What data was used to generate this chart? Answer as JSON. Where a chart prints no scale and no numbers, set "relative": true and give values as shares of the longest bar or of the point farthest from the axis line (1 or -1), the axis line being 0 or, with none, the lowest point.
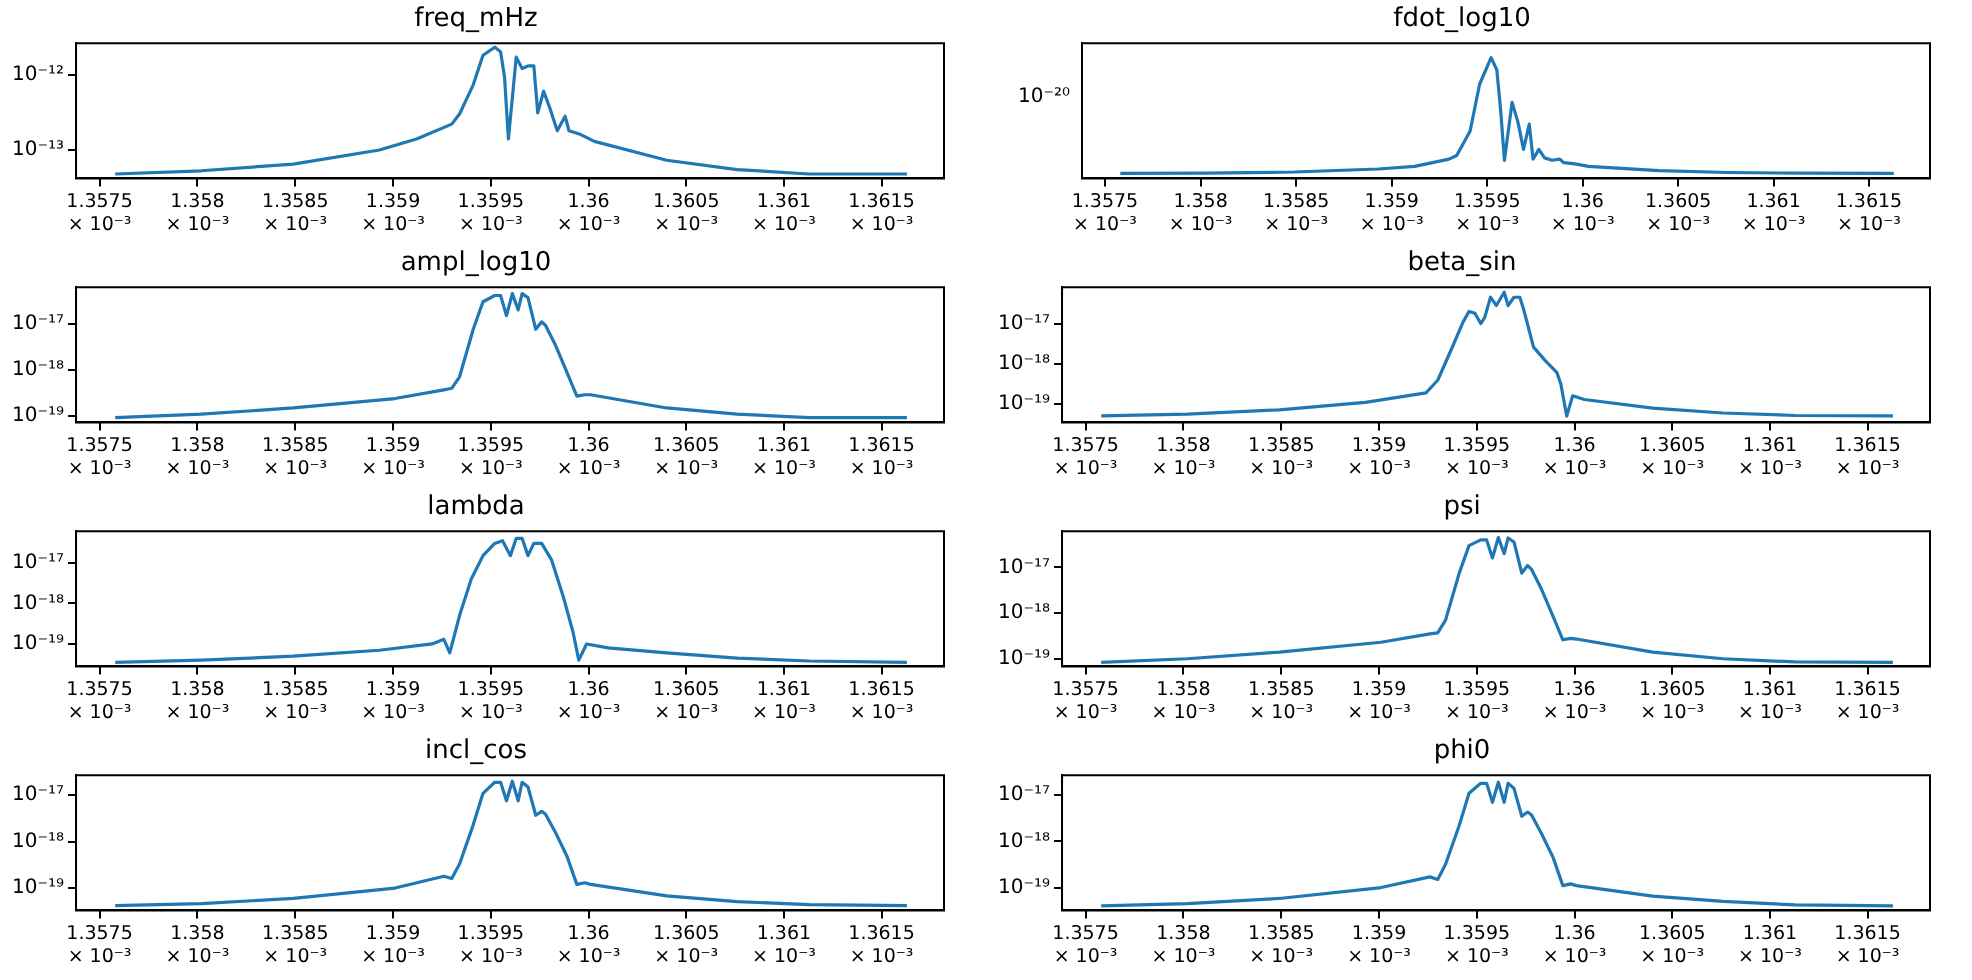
{
  "chart_data": [
    {
      "type": "line",
      "title": "freq_mHz",
      "color": "#1f77b4",
      "log": "xy",
      "grid": false,
      "legend": false,
      "x": [
        0.00135758,
        0.00135802,
        0.00135849,
        0.00135893,
        0.00135912,
        0.0013593,
        0.00135934,
        0.00135941,
        0.00135946,
        0.00135952,
        0.00135955,
        0.00135957,
        0.00135959,
        0.00135963,
        0.00135966,
        0.00135969,
        0.00135972,
        0.00135974,
        0.00135977,
        0.0013598,
        0.00135984,
        0.00135988,
        0.0013599,
        0.00135996,
        0.00136003,
        0.0013604,
        0.00136076,
        0.00136113,
        0.00136163
      ],
      "values": [
        4.8e-14,
        5.3e-14,
        6.5e-14,
        1e-13,
        1.4e-13,
        2.2e-13,
        3e-13,
        7.3e-13,
        1.8e-12,
        2.3e-12,
        2e-12,
        9.3e-13,
        1.4e-13,
        1.7e-12,
        1.2e-12,
        1.3e-12,
        1.3e-12,
        3.1e-13,
        6e-13,
        3.7e-13,
        1.8e-13,
        2.8e-13,
        1.8e-13,
        1.6e-13,
        1.3e-13,
        7.3e-14,
        5.5e-14,
        4.8e-14,
        4.8e-14
      ],
      "xlim": [
        0.00135738,
        0.00136182
      ],
      "ylim": [
        4.2e-14,
        2.6e-12
      ],
      "yticks": [
        {
          "value": 1e-13,
          "label": "10⁻¹³"
        },
        {
          "value": 1e-12,
          "label": "10⁻¹²"
        }
      ],
      "xticks": [
        {
          "value": 0.0013575,
          "label": "1.3575 × 10⁻³"
        },
        {
          "value": 0.001358,
          "label": "1.358 × 10⁻³"
        },
        {
          "value": 0.0013585,
          "label": "1.3585 × 10⁻³"
        },
        {
          "value": 0.001359,
          "label": "1.359 × 10⁻³"
        },
        {
          "value": 0.0013595,
          "label": "1.3595 × 10⁻³"
        },
        {
          "value": 0.00136,
          "label": "1.36 × 10⁻³"
        },
        {
          "value": 0.0013605,
          "label": "1.3605 × 10⁻³"
        },
        {
          "value": 0.001361,
          "label": "1.361 × 10⁻³"
        },
        {
          "value": 0.0013615,
          "label": "1.3615 × 10⁻³"
        }
      ]
    },
    {
      "type": "line",
      "title": "fdot_log10",
      "color": "#1f77b4",
      "log": "x",
      "grid": false,
      "legend": false,
      "x": [
        0.00135758,
        0.00135802,
        0.00135849,
        0.00135893,
        0.00135912,
        0.0013593,
        0.00135934,
        0.00135941,
        0.00135946,
        0.00135952,
        0.00135955,
        0.00135957,
        0.00135959,
        0.00135963,
        0.00135966,
        0.00135969,
        0.00135972,
        0.00135974,
        0.00135977,
        0.0013598,
        0.00135984,
        0.00135988,
        0.0013599,
        0.00135996,
        0.00136003,
        0.0013604,
        0.00136076,
        0.00136113,
        0.00136163
      ],
      "values": [
        0.041,
        0.043,
        0.053,
        0.078,
        0.1,
        0.16,
        0.19,
        0.39,
        0.78,
        1,
        0.9,
        0.57,
        0.15,
        0.63,
        0.47,
        0.24,
        0.45,
        0.16,
        0.24,
        0.17,
        0.15,
        0.16,
        0.13,
        0.12,
        0.1,
        0.065,
        0.049,
        0.043,
        0.041
      ],
      "relative": true,
      "annotations": [
        "10⁻²⁰"
      ],
      "xlim": [
        0.00135738,
        0.00136182
      ],
      "xticks": [
        {
          "value": 0.0013575,
          "label": "1.3575 × 10⁻³"
        },
        {
          "value": 0.001358,
          "label": "1.358 × 10⁻³"
        },
        {
          "value": 0.0013585,
          "label": "1.3585 × 10⁻³"
        },
        {
          "value": 0.001359,
          "label": "1.359 × 10⁻³"
        },
        {
          "value": 0.0013595,
          "label": "1.3595 × 10⁻³"
        },
        {
          "value": 0.00136,
          "label": "1.36 × 10⁻³"
        },
        {
          "value": 0.0013605,
          "label": "1.3605 × 10⁻³"
        },
        {
          "value": 0.001361,
          "label": "1.361 × 10⁻³"
        },
        {
          "value": 0.0013615,
          "label": "1.3615 × 10⁻³"
        }
      ]
    },
    {
      "type": "line",
      "title": "ampl_log10",
      "color": "#1f77b4",
      "log": "xy",
      "grid": false,
      "legend": false,
      "x": [
        0.00135758,
        0.00135802,
        0.00135849,
        0.00135901,
        0.00135926,
        0.0013593,
        0.00135934,
        0.00135941,
        0.00135946,
        0.00135952,
        0.00135955,
        0.00135958,
        0.00135961,
        0.00135964,
        0.00135966,
        0.00135969,
        0.00135973,
        0.00135976,
        0.00135978,
        0.00135983,
        0.00135989,
        0.00135994,
        0.00135998,
        0.00136001,
        0.0013604,
        0.00136076,
        0.00136113,
        0.00136163
      ],
      "values": [
        9.3e-20,
        1.1e-19,
        1.5e-19,
        2.4e-19,
        3.7e-19,
        4e-19,
        7.1e-19,
        7.6e-18,
        3e-17,
        4.1e-17,
        4.1e-17,
        1.5e-17,
        4.5e-17,
        2e-17,
        4.5e-17,
        3.7e-17,
        7.6e-18,
        1.1e-17,
        9.2e-18,
        3.5e-18,
        8.7e-19,
        2.7e-19,
        2.9e-19,
        2.9e-19,
        1.5e-19,
        1.1e-19,
        9.3e-20,
        9.3e-20
      ],
      "xlim": [
        0.00135738,
        0.00136182
      ],
      "ylim": [
        7.3e-20,
        6.2e-17
      ],
      "yticks": [
        {
          "value": 1e-19,
          "label": "10⁻¹⁹"
        },
        {
          "value": 1e-18,
          "label": "10⁻¹⁸"
        },
        {
          "value": 1e-17,
          "label": "10⁻¹⁷"
        }
      ],
      "xticks": [
        {
          "value": 0.0013575,
          "label": "1.3575 × 10⁻³"
        },
        {
          "value": 0.001358,
          "label": "1.358 × 10⁻³"
        },
        {
          "value": 0.0013585,
          "label": "1.3585 × 10⁻³"
        },
        {
          "value": 0.001359,
          "label": "1.359 × 10⁻³"
        },
        {
          "value": 0.0013595,
          "label": "1.3595 × 10⁻³"
        },
        {
          "value": 0.00136,
          "label": "1.36 × 10⁻³"
        },
        {
          "value": 0.0013605,
          "label": "1.3605 × 10⁻³"
        },
        {
          "value": 0.001361,
          "label": "1.361 × 10⁻³"
        },
        {
          "value": 0.0013615,
          "label": "1.3615 × 10⁻³"
        }
      ]
    },
    {
      "type": "line",
      "title": "beta_sin",
      "color": "#1f77b4",
      "log": "xy",
      "grid": false,
      "legend": false,
      "x": [
        0.00135758,
        0.00135802,
        0.00135849,
        0.00135893,
        0.00135924,
        0.0013593,
        0.00135937,
        0.00135943,
        0.00135946,
        0.00135949,
        0.00135952,
        0.00135954,
        0.00135957,
        0.0013596,
        0.00135964,
        0.00135966,
        0.00135969,
        0.00135972,
        0.00135974,
        0.00135979,
        0.00135985,
        0.00135991,
        0.00135993,
        0.00135996,
        0.00135999,
        0.00136005,
        0.0013604,
        0.00136076,
        0.00136113,
        0.00136163
      ],
      "values": [
        5.1e-20,
        5.6e-20,
        7.2e-20,
        1.1e-19,
        1.9e-19,
        3.9e-19,
        2.3e-18,
        1.1e-17,
        2e-17,
        1.8e-17,
        1e-17,
        1.4e-17,
        4.5e-17,
        2.8e-17,
        6e-17,
        2.8e-17,
        4.5e-17,
        4.5e-17,
        2.2e-17,
        2.6e-18,
        1.2e-18,
        6e-19,
        3.1e-19,
        5e-20,
        1.6e-19,
        1.3e-19,
        7.9e-20,
        6e-20,
        5.2e-20,
        5.1e-20
      ],
      "xlim": [
        0.00135738,
        0.00136182
      ],
      "ylim": [
        3.5e-20,
        8e-17
      ],
      "yticks": [
        {
          "value": 1e-19,
          "label": "10⁻¹⁹"
        },
        {
          "value": 1e-18,
          "label": "10⁻¹⁸"
        },
        {
          "value": 1e-17,
          "label": "10⁻¹⁷"
        }
      ],
      "xticks": [
        {
          "value": 0.0013575,
          "label": "1.3575 × 10⁻³"
        },
        {
          "value": 0.001358,
          "label": "1.358 × 10⁻³"
        },
        {
          "value": 0.0013585,
          "label": "1.3585 × 10⁻³"
        },
        {
          "value": 0.001359,
          "label": "1.359 × 10⁻³"
        },
        {
          "value": 0.0013595,
          "label": "1.3595 × 10⁻³"
        },
        {
          "value": 0.00136,
          "label": "1.36 × 10⁻³"
        },
        {
          "value": 0.0013605,
          "label": "1.3605 × 10⁻³"
        },
        {
          "value": 0.001361,
          "label": "1.361 × 10⁻³"
        },
        {
          "value": 0.0013615,
          "label": "1.3615 × 10⁻³"
        }
      ]
    },
    {
      "type": "line",
      "title": "lambda",
      "color": "#1f77b4",
      "log": "xy",
      "grid": false,
      "legend": false,
      "x": [
        0.00135758,
        0.00135802,
        0.00135849,
        0.00135893,
        0.0013592,
        0.00135926,
        0.00135929,
        0.00135934,
        0.0013594,
        0.00135946,
        0.00135952,
        0.00135956,
        0.0013596,
        0.00135963,
        0.00135966,
        0.00135969,
        0.00135972,
        0.00135976,
        0.00135981,
        0.00135987,
        0.00135992,
        0.00135995,
        0.00135999,
        0.0013601,
        0.0013604,
        0.00136076,
        0.00136113,
        0.00136163
      ],
      "values": [
        3.5e-20,
        4e-20,
        5e-20,
        7e-20,
        1e-19,
        1.3e-19,
        6e-20,
        5e-19,
        4e-18,
        1.5e-17,
        3e-17,
        3.5e-17,
        1.5e-17,
        4e-17,
        4e-17,
        1.5e-17,
        3e-17,
        3e-17,
        1.2e-17,
        1.5e-18,
        2e-19,
        4e-20,
        1e-19,
        8e-20,
        6e-20,
        4.5e-20,
        3.8e-20,
        3.5e-20
      ],
      "xlim": [
        0.00135738,
        0.00136182
      ],
      "ylim": [
        2.8e-20,
        6e-17
      ],
      "yticks": [
        {
          "value": 1e-19,
          "label": "10⁻¹⁹"
        },
        {
          "value": 1e-18,
          "label": "10⁻¹⁸"
        },
        {
          "value": 1e-17,
          "label": "10⁻¹⁷"
        }
      ],
      "xticks": [
        {
          "value": 0.0013575,
          "label": "1.3575 × 10⁻³"
        },
        {
          "value": 0.001358,
          "label": "1.358 × 10⁻³"
        },
        {
          "value": 0.0013585,
          "label": "1.3585 × 10⁻³"
        },
        {
          "value": 0.001359,
          "label": "1.359 × 10⁻³"
        },
        {
          "value": 0.0013595,
          "label": "1.3595 × 10⁻³"
        },
        {
          "value": 0.00136,
          "label": "1.36 × 10⁻³"
        },
        {
          "value": 0.0013605,
          "label": "1.3605 × 10⁻³"
        },
        {
          "value": 0.001361,
          "label": "1.361 × 10⁻³"
        },
        {
          "value": 0.0013615,
          "label": "1.3615 × 10⁻³"
        }
      ]
    },
    {
      "type": "line",
      "title": "psi",
      "color": "#1f77b4",
      "log": "xy",
      "grid": false,
      "legend": false,
      "x": [
        0.00135758,
        0.00135802,
        0.00135849,
        0.00135901,
        0.00135926,
        0.0013593,
        0.00135934,
        0.00135941,
        0.00135946,
        0.00135952,
        0.00135955,
        0.00135958,
        0.00135961,
        0.00135964,
        0.00135966,
        0.00135969,
        0.00135973,
        0.00135976,
        0.00135978,
        0.00135983,
        0.00135989,
        0.00135994,
        0.00135998,
        0.00136001,
        0.0013604,
        0.00136076,
        0.00136113,
        0.00136163
      ],
      "values": [
        8.3e-20,
        1e-19,
        1.4e-19,
        2.3e-19,
        3.5e-19,
        3.7e-19,
        7e-19,
        7.5e-18,
        3e-17,
        4e-17,
        4e-17,
        1.6e-17,
        4.5e-17,
        2e-17,
        4.4e-17,
        3.6e-17,
        7.5e-18,
        1.1e-17,
        9e-18,
        3.4e-18,
        8.5e-19,
        2.6e-19,
        2.8e-19,
        2.7e-19,
        1.4e-19,
        1e-19,
        8.5e-20,
        8.3e-20
      ],
      "xlim": [
        0.00135738,
        0.00136182
      ],
      "ylim": [
        6.8e-20,
        6.2e-17
      ],
      "yticks": [
        {
          "value": 1e-19,
          "label": "10⁻¹⁹"
        },
        {
          "value": 1e-18,
          "label": "10⁻¹⁸"
        },
        {
          "value": 1e-17,
          "label": "10⁻¹⁷"
        }
      ],
      "xticks": [
        {
          "value": 0.0013575,
          "label": "1.3575 × 10⁻³"
        },
        {
          "value": 0.001358,
          "label": "1.358 × 10⁻³"
        },
        {
          "value": 0.0013585,
          "label": "1.3585 × 10⁻³"
        },
        {
          "value": 0.001359,
          "label": "1.359 × 10⁻³"
        },
        {
          "value": 0.0013595,
          "label": "1.3595 × 10⁻³"
        },
        {
          "value": 0.00136,
          "label": "1.36 × 10⁻³"
        },
        {
          "value": 0.0013605,
          "label": "1.3605 × 10⁻³"
        },
        {
          "value": 0.001361,
          "label": "1.361 × 10⁻³"
        },
        {
          "value": 0.0013615,
          "label": "1.3615 × 10⁻³"
        }
      ]
    },
    {
      "type": "line",
      "title": "incl_cos",
      "color": "#1f77b4",
      "log": "xy",
      "grid": false,
      "legend": false,
      "x": [
        0.00135758,
        0.00135802,
        0.00135849,
        0.00135901,
        0.00135926,
        0.0013593,
        0.00135934,
        0.00135941,
        0.00135946,
        0.00135952,
        0.00135955,
        0.00135958,
        0.00135961,
        0.00135964,
        0.00135966,
        0.00135969,
        0.00135973,
        0.00135976,
        0.00135978,
        0.00135983,
        0.00135989,
        0.00135994,
        0.00135998,
        0.00136001,
        0.0013604,
        0.00136076,
        0.00136113,
        0.00136163
      ],
      "values": [
        4.2e-20,
        4.6e-20,
        6e-20,
        1e-19,
        1.8e-19,
        1.6e-19,
        3.3e-19,
        2.3e-18,
        1.1e-17,
        1.9e-17,
        1.9e-17,
        7.6e-18,
        2e-17,
        7.6e-18,
        1.9e-17,
        1.5e-17,
        3.7e-18,
        4.5e-18,
        3.9e-18,
        1.6e-18,
        4.8e-19,
        1.2e-19,
        1.3e-19,
        1.2e-19,
        6.8e-20,
        5.1e-20,
        4.4e-20,
        4.2e-20
      ],
      "xlim": [
        0.00135738,
        0.00136182
      ],
      "ylim": [
        3.3e-20,
        2.7e-17
      ],
      "yticks": [
        {
          "value": 1e-19,
          "label": "10⁻¹⁹"
        },
        {
          "value": 1e-18,
          "label": "10⁻¹⁸"
        },
        {
          "value": 1e-17,
          "label": "10⁻¹⁷"
        }
      ],
      "xticks": [
        {
          "value": 0.0013575,
          "label": "1.3575 × 10⁻³"
        },
        {
          "value": 0.001358,
          "label": "1.358 × 10⁻³"
        },
        {
          "value": 0.0013585,
          "label": "1.3585 × 10⁻³"
        },
        {
          "value": 0.001359,
          "label": "1.359 × 10⁻³"
        },
        {
          "value": 0.0013595,
          "label": "1.3595 × 10⁻³"
        },
        {
          "value": 0.00136,
          "label": "1.36 × 10⁻³"
        },
        {
          "value": 0.0013605,
          "label": "1.3605 × 10⁻³"
        },
        {
          "value": 0.001361,
          "label": "1.361 × 10⁻³"
        },
        {
          "value": 0.0013615,
          "label": "1.3615 × 10⁻³"
        }
      ]
    },
    {
      "type": "line",
      "title": "phi0",
      "color": "#1f77b4",
      "log": "xy",
      "grid": false,
      "legend": false,
      "x": [
        0.00135758,
        0.00135802,
        0.00135849,
        0.00135901,
        0.00135926,
        0.0013593,
        0.00135934,
        0.00135941,
        0.00135946,
        0.00135952,
        0.00135955,
        0.00135958,
        0.00135961,
        0.00135964,
        0.00135966,
        0.00135969,
        0.00135973,
        0.00135976,
        0.00135978,
        0.00135983,
        0.00135989,
        0.00135994,
        0.00135998,
        0.00136001,
        0.0013604,
        0.00136076,
        0.00136113,
        0.00136163
      ],
      "values": [
        4e-20,
        4.5e-20,
        5.8e-20,
        1e-19,
        1.7e-19,
        1.5e-19,
        3.2e-19,
        2.2e-18,
        1.1e-17,
        1.8e-17,
        1.8e-17,
        7e-18,
        1.9e-17,
        7e-18,
        1.8e-17,
        1.4e-17,
        3.5e-18,
        4.3e-18,
        3.7e-18,
        1.5e-18,
        4.5e-19,
        1.1e-19,
        1.2e-19,
        1.1e-19,
        6.5e-20,
        5e-20,
        4.2e-20,
        4e-20
      ],
      "xlim": [
        0.00135738,
        0.00136182
      ],
      "ylim": [
        3.2e-20,
        2.7e-17
      ],
      "yticks": [
        {
          "value": 1e-19,
          "label": "10⁻¹⁹"
        },
        {
          "value": 1e-18,
          "label": "10⁻¹⁸"
        },
        {
          "value": 1e-17,
          "label": "10⁻¹⁷"
        }
      ],
      "xticks": [
        {
          "value": 0.0013575,
          "label": "1.3575 × 10⁻³"
        },
        {
          "value": 0.001358,
          "label": "1.358 × 10⁻³"
        },
        {
          "value": 0.0013585,
          "label": "1.3585 × 10⁻³"
        },
        {
          "value": 0.001359,
          "label": "1.359 × 10⁻³"
        },
        {
          "value": 0.0013595,
          "label": "1.3595 × 10⁻³"
        },
        {
          "value": 0.00136,
          "label": "1.36 × 10⁻³"
        },
        {
          "value": 0.0013605,
          "label": "1.3605 × 10⁻³"
        },
        {
          "value": 0.001361,
          "label": "1.361 × 10⁻³"
        },
        {
          "value": 0.0013615,
          "label": "1.3615 × 10⁻³"
        }
      ]
    }
  ]
}
